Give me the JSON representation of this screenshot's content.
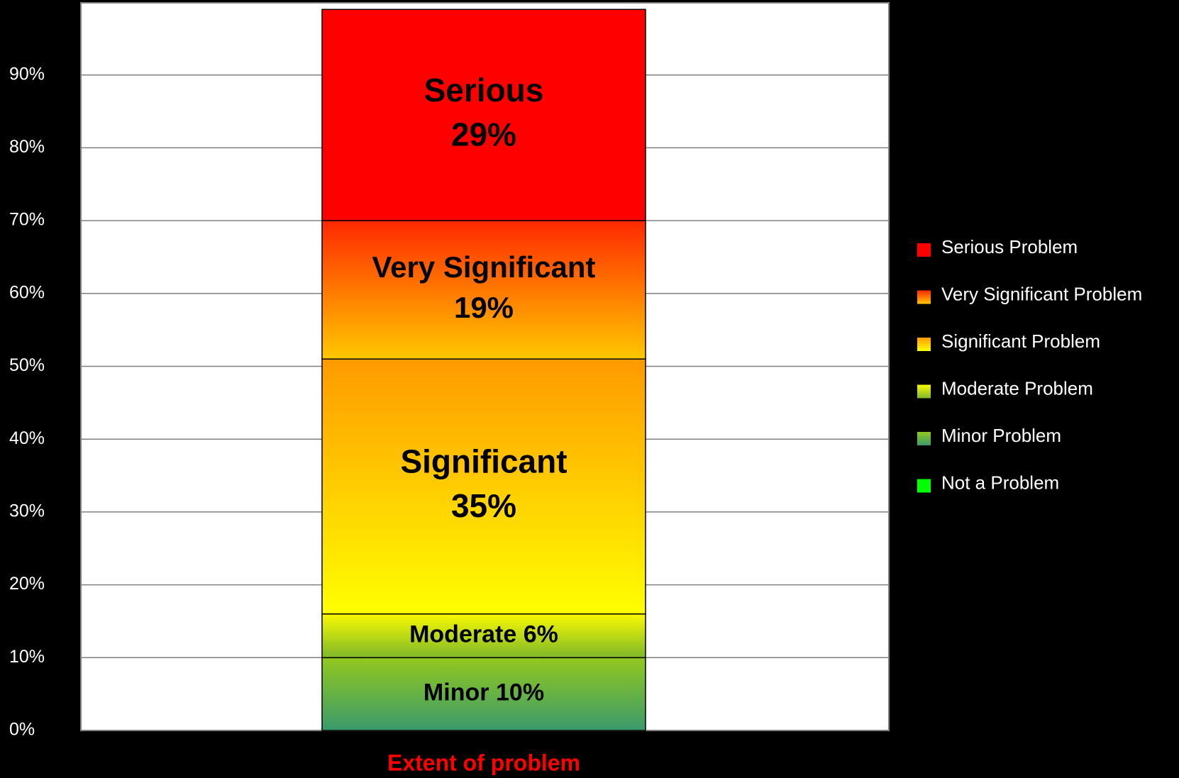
{
  "chart_data": {
    "type": "stacked_bar",
    "categories": [
      "Extent of problem"
    ],
    "ylim": [
      0,
      100
    ],
    "yticks": [
      {
        "value": 0,
        "label": "0%"
      },
      {
        "value": 10,
        "label": "10%"
      },
      {
        "value": 20,
        "label": "20%"
      },
      {
        "value": 30,
        "label": "30%"
      },
      {
        "value": 40,
        "label": "40%"
      },
      {
        "value": 50,
        "label": "50%"
      },
      {
        "value": 60,
        "label": "60%"
      },
      {
        "value": 70,
        "label": "70%"
      },
      {
        "value": 80,
        "label": "80%"
      },
      {
        "value": 90,
        "label": "90%"
      }
    ],
    "grid": true,
    "legend": "right",
    "series": [
      {
        "name": "Not a Problem",
        "color": [
          "#00ff00",
          "#00ff00"
        ],
        "values": [
          0
        ]
      },
      {
        "name": "Minor Problem",
        "label": "Minor",
        "color": [
          "#92c81e",
          "#3a9a6c"
        ],
        "values": [
          10
        ],
        "value_labels": [
          "10%"
        ],
        "inline": true,
        "font": 34
      },
      {
        "name": "Moderate Problem",
        "label": "Moderate",
        "color": [
          "#fafa00",
          "#7fb82a"
        ],
        "values": [
          6
        ],
        "value_labels": [
          "6%"
        ],
        "inline": true,
        "font": 34
      },
      {
        "name": "Significant Problem",
        "label": "Significant",
        "color": [
          "#ff9a00",
          "#ffff00"
        ],
        "values": [
          35
        ],
        "value_labels": [
          "35%"
        ],
        "font": 46
      },
      {
        "name": "Very Significant Problem",
        "label": "Very Significant",
        "color": [
          "#ff2800",
          "#ffc800"
        ],
        "values": [
          19
        ],
        "value_labels": [
          "19%"
        ],
        "font": 42
      },
      {
        "name": "Serious Problem",
        "label": "Serious",
        "color": [
          "#ff0000",
          "#ff0000"
        ],
        "values": [
          29
        ],
        "value_labels": [
          "29%"
        ],
        "font": 46
      }
    ]
  }
}
